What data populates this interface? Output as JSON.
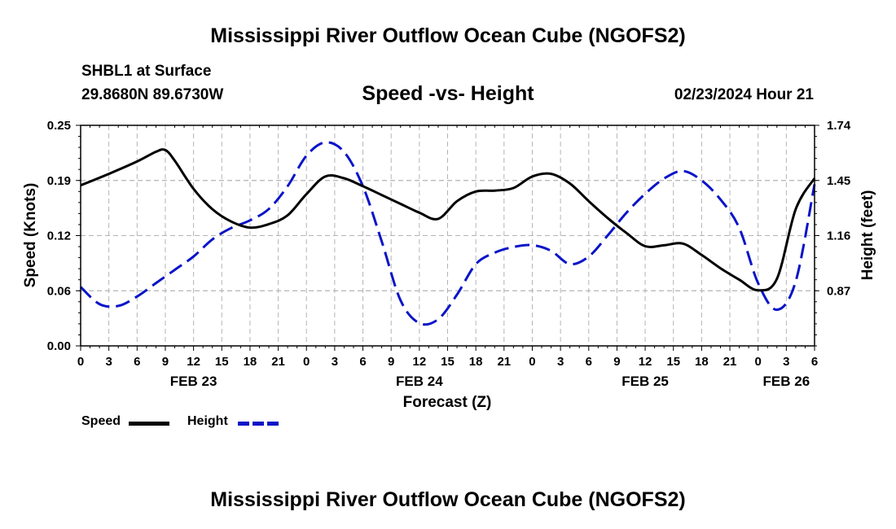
{
  "header": {
    "title": "Mississippi River Outflow Ocean Cube (NGOFS2)",
    "station": "SHBL1 at Surface",
    "coords": "29.8680N  89.6730W",
    "subtitle": "Speed -vs- Height",
    "datetime": "02/23/2024 Hour 21"
  },
  "footer": {
    "title": "Mississippi River Outflow Ocean Cube (NGOFS2)"
  },
  "colors": {
    "speed": "#000000",
    "height": "#0a14c8",
    "grid": "#b4b4b4"
  },
  "chart_data": {
    "type": "line",
    "title": "Speed -vs- Height",
    "xlabel": "Forecast (Z)",
    "ylabel": "Speed (Knots)",
    "y2label": "Height (feet)",
    "x_range": [
      0,
      78
    ],
    "ylim": [
      0,
      0.25
    ],
    "y2lim": [
      0.58,
      1.74
    ],
    "y_ticks": [
      "0.00",
      "0.06",
      "0.12",
      "0.19",
      "0.25"
    ],
    "y2_ticks": [
      "0.87",
      "1.16",
      "1.45",
      "1.74"
    ],
    "x_ticks": [
      "0",
      "3",
      "6",
      "9",
      "12",
      "15",
      "18",
      "21",
      "0",
      "3",
      "6",
      "9",
      "12",
      "15",
      "18",
      "21",
      "0",
      "3",
      "6",
      "9",
      "12",
      "15",
      "18",
      "21",
      "0",
      "3",
      "6"
    ],
    "day_labels": [
      {
        "label": "FEB 23",
        "hour": 12
      },
      {
        "label": "FEB 24",
        "hour": 36
      },
      {
        "label": "FEB 25",
        "hour": 60
      },
      {
        "label": "FEB 26",
        "hour": 75
      }
    ],
    "grid": true,
    "legend": {
      "placement": "bottom-left",
      "entries": [
        {
          "label": "Speed",
          "series": "speed"
        },
        {
          "label": "Height",
          "series": "height"
        }
      ]
    },
    "series": [
      {
        "name": "Speed",
        "axis": "left",
        "style": "solid",
        "x": [
          0,
          3,
          6,
          8,
          9,
          10,
          12,
          14,
          16,
          18,
          20,
          22,
          24,
          26,
          28,
          30,
          32,
          34,
          36,
          38,
          40,
          42,
          44,
          46,
          48,
          50,
          52,
          54,
          56,
          58,
          60,
          62,
          64,
          66,
          68,
          70,
          72,
          74,
          76,
          78
        ],
        "values": [
          0.182,
          0.195,
          0.209,
          0.22,
          0.222,
          0.21,
          0.178,
          0.155,
          0.141,
          0.134,
          0.138,
          0.148,
          0.172,
          0.192,
          0.19,
          0.181,
          0.171,
          0.161,
          0.151,
          0.144,
          0.164,
          0.175,
          0.176,
          0.179,
          0.192,
          0.195,
          0.184,
          0.164,
          0.145,
          0.128,
          0.113,
          0.114,
          0.116,
          0.103,
          0.088,
          0.075,
          0.063,
          0.076,
          0.155,
          0.19
        ]
      },
      {
        "name": "Height",
        "axis": "right",
        "style": "dashed",
        "x": [
          0,
          2,
          4,
          6,
          8,
          10,
          12,
          14,
          16,
          18,
          20,
          22,
          24,
          26,
          28,
          30,
          32,
          34,
          36,
          38,
          40,
          42,
          44,
          46,
          48,
          50,
          52,
          54,
          56,
          58,
          60,
          62,
          64,
          66,
          68,
          70,
          72,
          74,
          76,
          78
        ],
        "values": [
          0.89,
          0.8,
          0.79,
          0.84,
          0.91,
          0.98,
          1.05,
          1.14,
          1.2,
          1.24,
          1.3,
          1.42,
          1.58,
          1.65,
          1.6,
          1.42,
          1.13,
          0.82,
          0.7,
          0.72,
          0.85,
          1.01,
          1.07,
          1.1,
          1.11,
          1.08,
          1.01,
          1.05,
          1.16,
          1.28,
          1.38,
          1.46,
          1.5,
          1.45,
          1.35,
          1.2,
          0.91,
          0.77,
          0.92,
          1.43
        ]
      }
    ]
  }
}
